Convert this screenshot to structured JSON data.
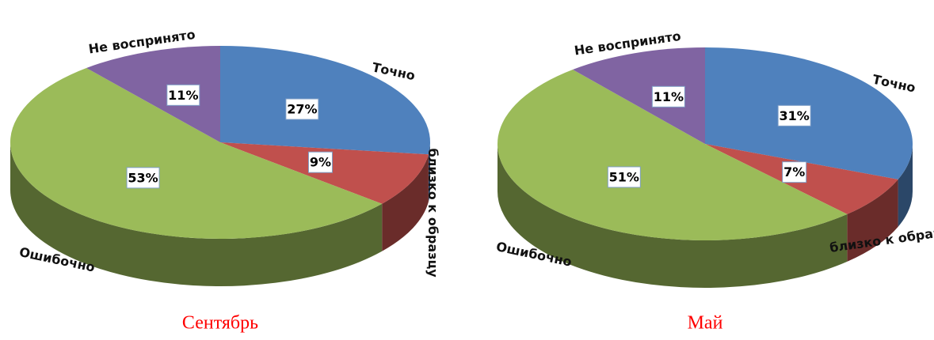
{
  "chart_data": [
    {
      "type": "pie",
      "title": "Сентябрь",
      "title_color": "#ff0000",
      "categories": [
        "Точно",
        "близко к образцу",
        "Ошибочно",
        "Не воспринято"
      ],
      "values": [
        27,
        9,
        53,
        11
      ],
      "value_labels": [
        "27%",
        "9%",
        "53%",
        "11%"
      ],
      "colors": [
        "#4f81bd",
        "#c0504d",
        "#9bbb59",
        "#8064a2"
      ]
    },
    {
      "type": "pie",
      "title": "Май",
      "title_color": "#ff0000",
      "categories": [
        "Точно",
        "близко к образцу",
        "Ошибочно",
        "Не воспринято"
      ],
      "values": [
        31,
        7,
        51,
        11
      ],
      "value_labels": [
        "31%",
        "7%",
        "51%",
        "11%"
      ],
      "colors": [
        "#4f81bd",
        "#c0504d",
        "#9bbb59",
        "#8064a2"
      ]
    }
  ]
}
